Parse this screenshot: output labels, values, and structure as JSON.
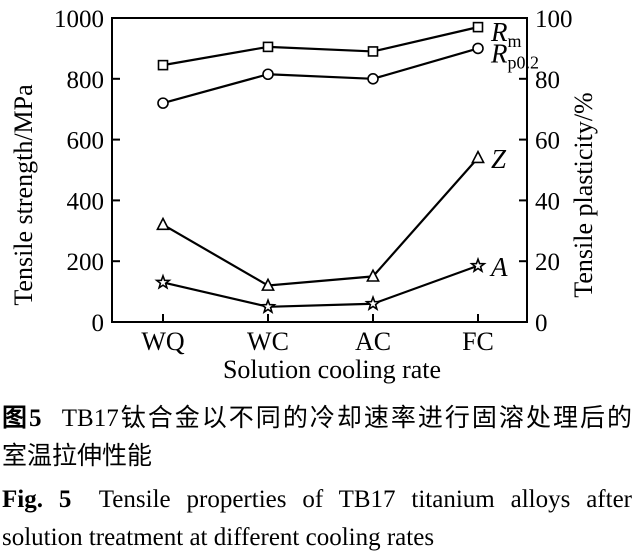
{
  "chart_data": {
    "type": "line",
    "categories": [
      "WQ",
      "WC",
      "AC",
      "FC"
    ],
    "xlabel": "Solution cooling rate",
    "ylabel_left": "Tensile strength/MPa",
    "ylabel_right": "Tensile plasticity/%",
    "ylim_left": [
      0,
      1000
    ],
    "ylim_right": [
      0,
      100
    ],
    "yticks_left": [
      0,
      200,
      400,
      600,
      800,
      1000
    ],
    "yticks_right": [
      0,
      20,
      40,
      60,
      80,
      100
    ],
    "grid": false,
    "legend_position": "end-of-line-labels",
    "colors": {
      "line": "#000000",
      "marker_fill": "#ffffff",
      "background": "#ffffff"
    },
    "series": [
      {
        "name": "Rm",
        "label_main": "R",
        "label_sub": "m",
        "marker": "square",
        "axis": "left",
        "unit": "MPa",
        "values": [
          845,
          905,
          890,
          970
        ]
      },
      {
        "name": "Rp0.2",
        "label_main": "R",
        "label_sub": "p0.2",
        "marker": "circle",
        "axis": "left",
        "unit": "MPa",
        "values": [
          720,
          815,
          800,
          900
        ]
      },
      {
        "name": "Z",
        "label_main": "Z",
        "label_sub": "",
        "marker": "triangle",
        "axis": "right",
        "unit": "%",
        "values": [
          32,
          12,
          15,
          54
        ]
      },
      {
        "name": "A",
        "label_main": "A",
        "label_sub": "",
        "marker": "star",
        "axis": "right",
        "unit": "%",
        "values": [
          13,
          5,
          6,
          18.5
        ]
      }
    ]
  },
  "caption_zh": {
    "label": "图5",
    "line1": "TB17钛合金以不同的冷却速率进行固溶处理后的",
    "line2": "室温拉伸性能"
  },
  "caption_en": {
    "label": "Fig. 5",
    "line1": "Tensile properties of TB17 titanium alloys after",
    "line2": "solution treatment at different cooling rates"
  }
}
